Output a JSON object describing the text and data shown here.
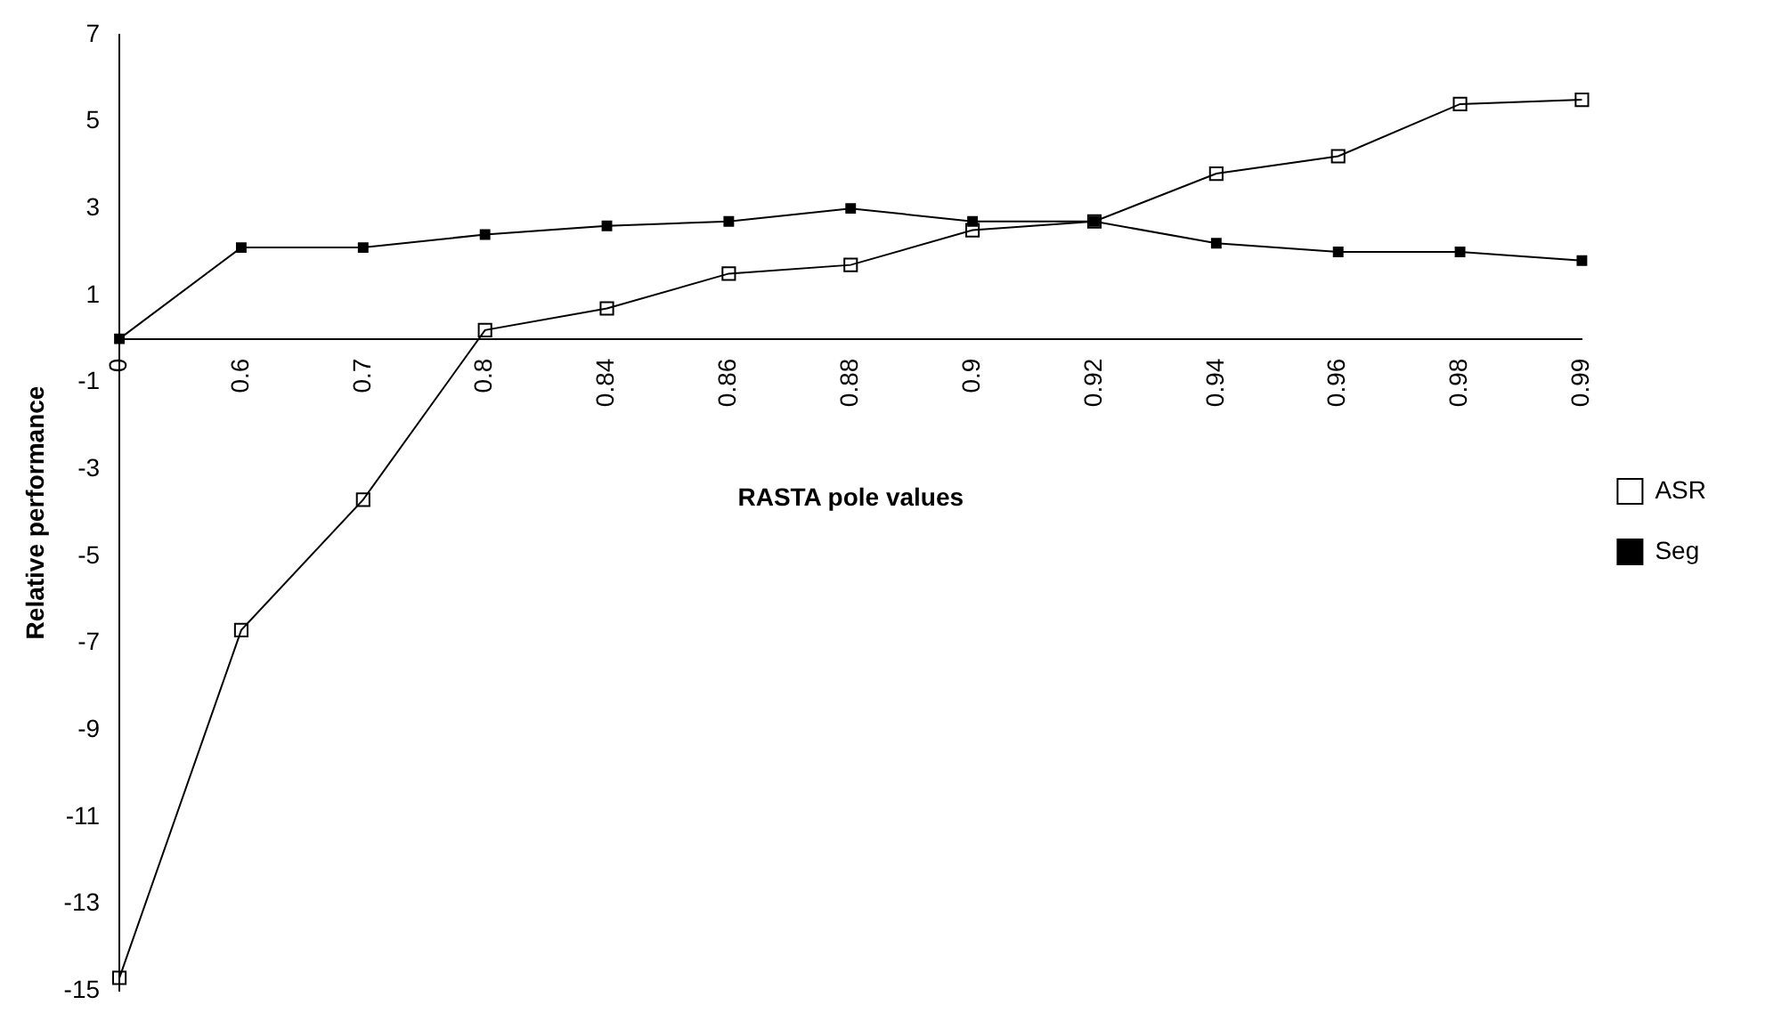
{
  "chart_data": {
    "type": "line",
    "xlabel": "RASTA pole values",
    "ylabel": "Relative performance",
    "categories": [
      "0",
      "0.6",
      "0.7",
      "0.8",
      "0.84",
      "0.86",
      "0.88",
      "0.9",
      "0.92",
      "0.94",
      "0.96",
      "0.98",
      "0.99"
    ],
    "series": [
      {
        "name": "Seg",
        "color": "#000000",
        "marker": "square",
        "values": [
          0,
          2.1,
          2.1,
          2.4,
          2.6,
          2.7,
          3.0,
          2.7,
          2.7,
          2.2,
          2.0,
          2.0,
          1.8
        ]
      },
      {
        "name": "ASR",
        "color": "#000000",
        "marker": "square",
        "values": [
          -14.7,
          -6.7,
          -3.7,
          0.2,
          0.7,
          1.5,
          1.7,
          2.5,
          2.7,
          3.8,
          4.2,
          5.4,
          5.5
        ]
      }
    ],
    "ylim": [
      -15,
      7
    ],
    "yticks": [
      -15,
      -13,
      -11,
      -9,
      -7,
      -5,
      -3,
      -1,
      1,
      3,
      5,
      7
    ],
    "grid": false,
    "legend": "right"
  }
}
